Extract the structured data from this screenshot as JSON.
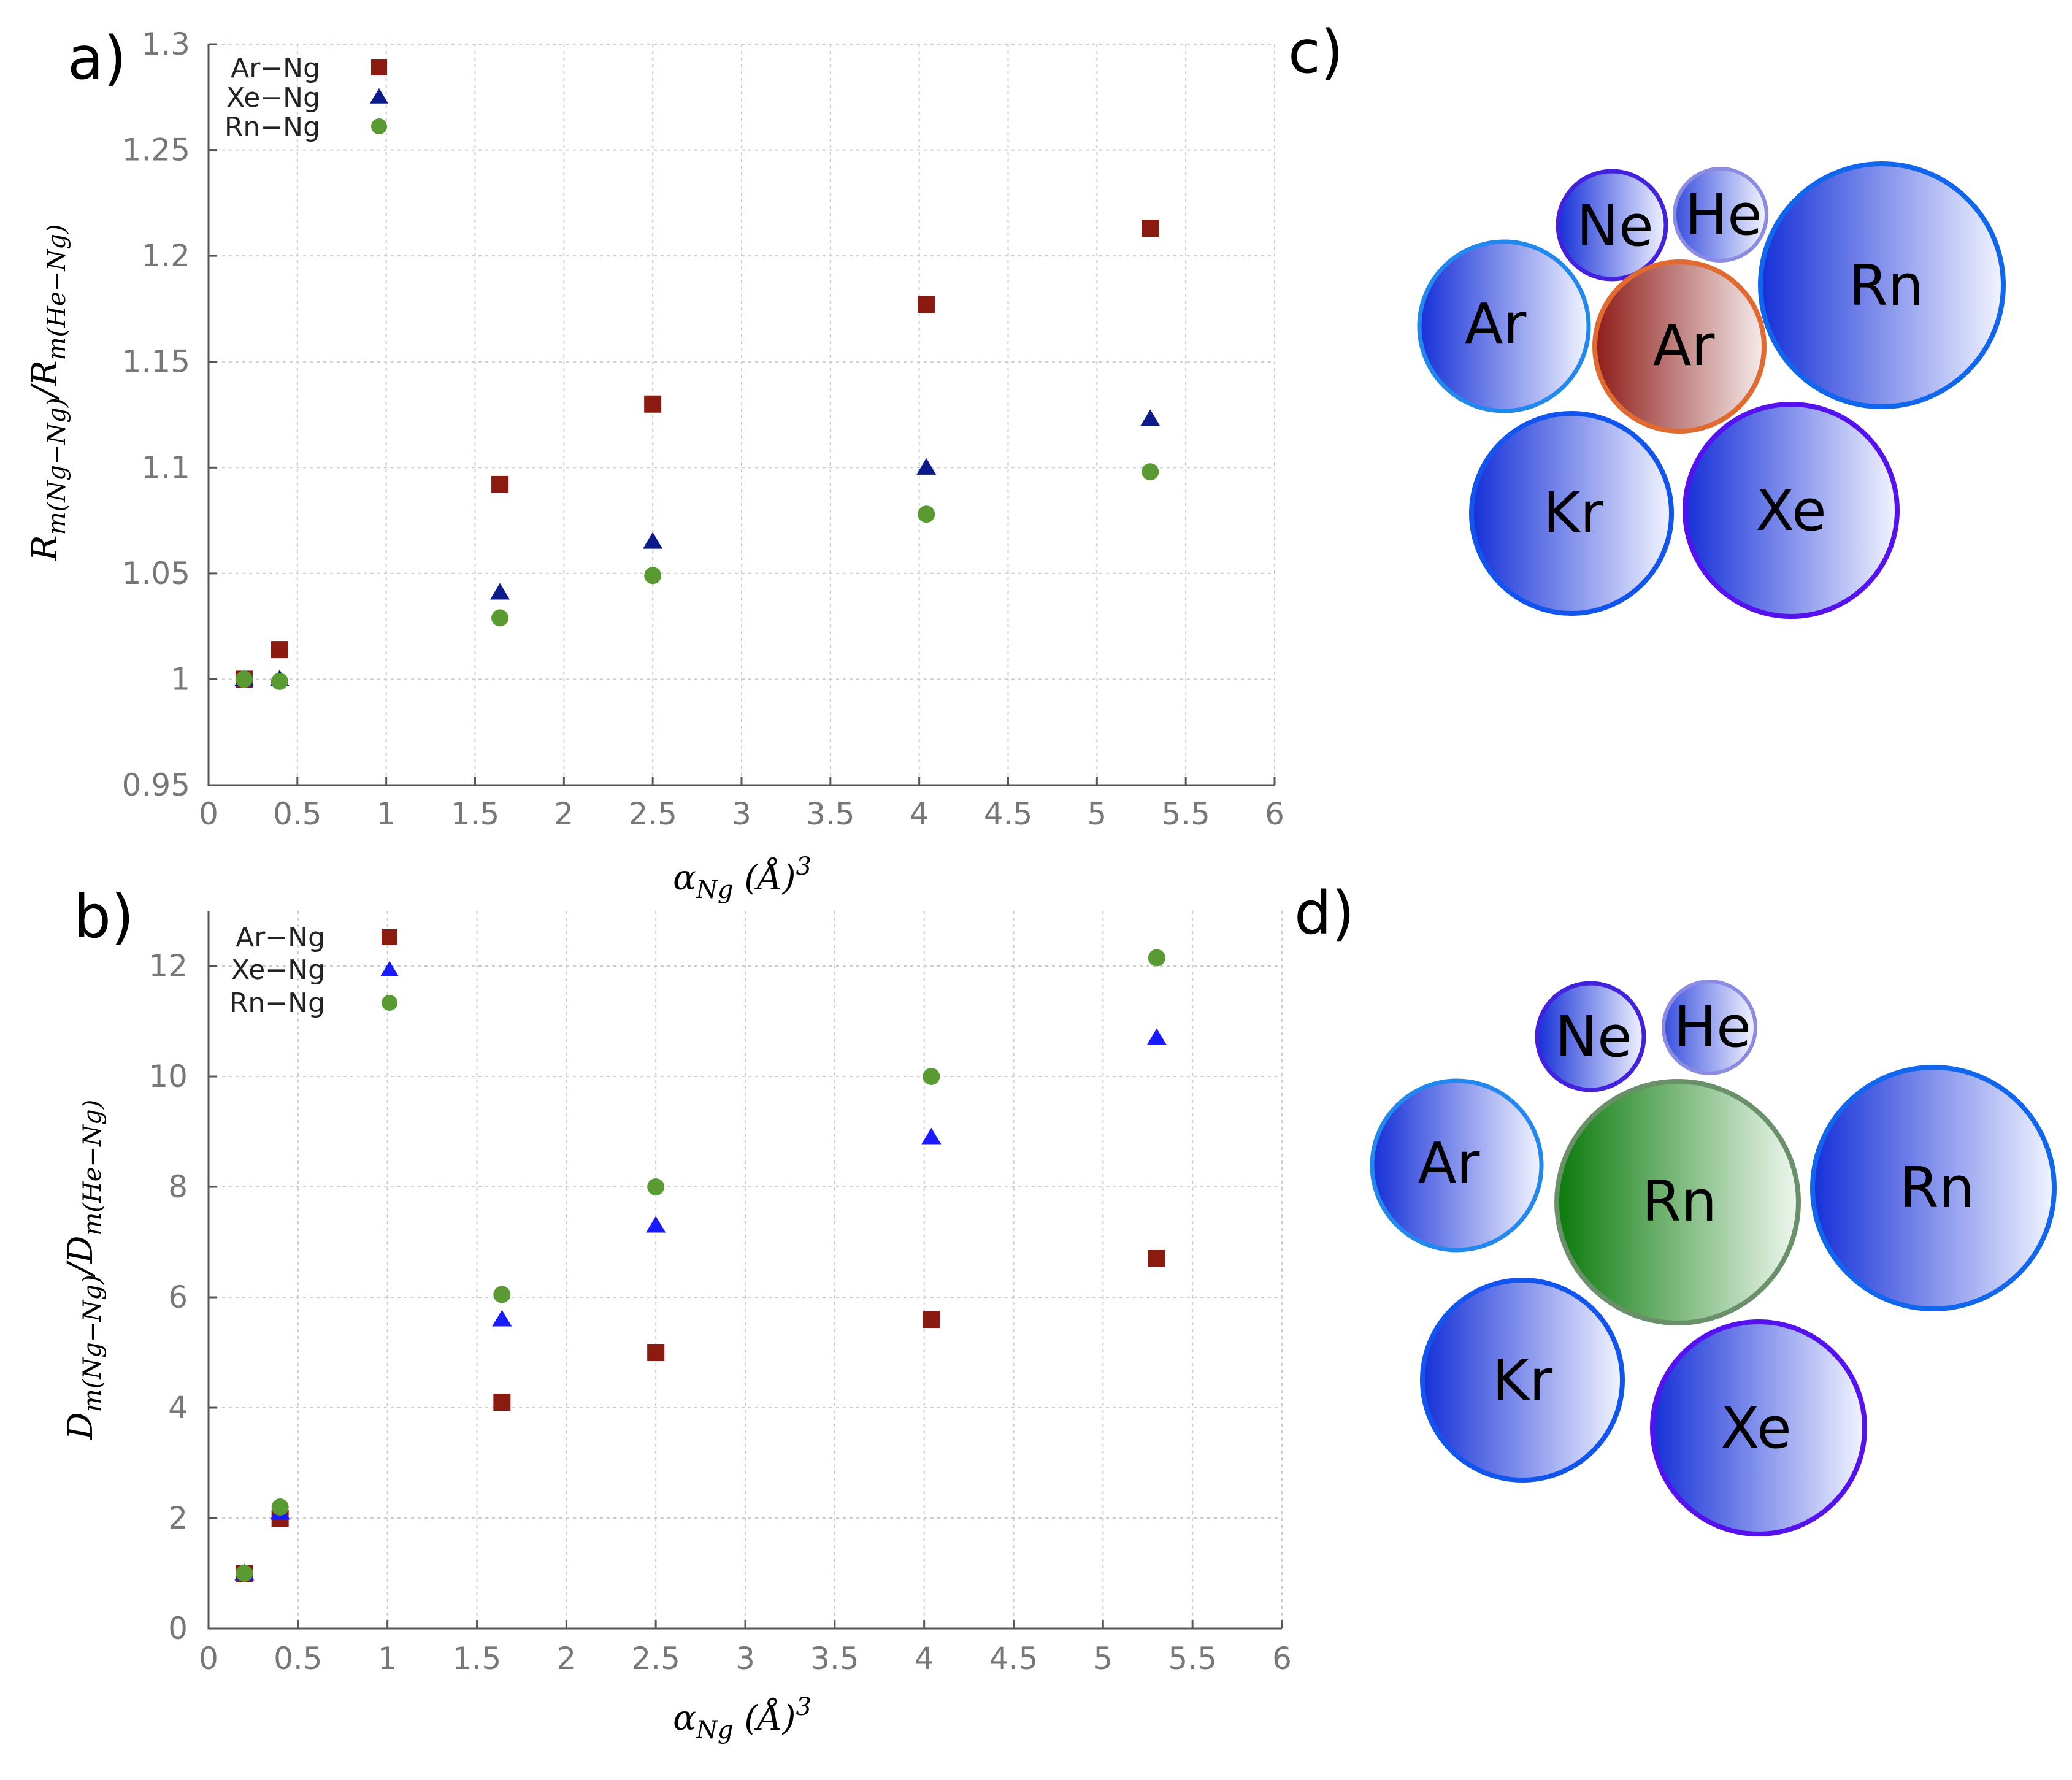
{
  "colors": {
    "ar": "#8b1a10",
    "xe_a": "#0d1a8a",
    "xe_b": "#1a1aff",
    "rn": "#5a9a32",
    "atom_blue": "#2233dd",
    "center_ar": "#a03028",
    "center_rn": "#108010"
  },
  "panel_labels": {
    "a": "a)",
    "b": "b)",
    "c": "c)",
    "d": "d)"
  },
  "chart_data": [
    {
      "type": "scatter",
      "panel": "a",
      "ylabel": {
        "main": "R",
        "sub1": "m(Ng−Ng)",
        "sep": "/R",
        "sub2": "m(He−Ng)"
      },
      "xlabel": {
        "main": "α",
        "sub": "Ng",
        "rest": " (Å)",
        "sup": "3"
      },
      "xlim": [
        0,
        6
      ],
      "ylim": [
        0.95,
        1.3
      ],
      "xticks": [
        0,
        0.5,
        1,
        1.5,
        2,
        2.5,
        3,
        3.5,
        4,
        4.5,
        5,
        5.5,
        6
      ],
      "xtick_labels": [
        "0",
        "0.5",
        "1",
        "1.5",
        "2",
        "2.5",
        "3",
        "3.5",
        "4",
        "4.5",
        "5",
        "5.5",
        "6"
      ],
      "yticks": [
        0.95,
        1,
        1.05,
        1.1,
        1.15,
        1.2,
        1.25,
        1.3
      ],
      "ytick_labels": [
        "0.95",
        "1",
        "1.05",
        "1.1",
        "1.15",
        "1.2",
        "1.25",
        "1.3"
      ],
      "x": [
        0.2,
        0.4,
        1.64,
        2.5,
        4.04,
        5.3
      ],
      "series": [
        {
          "name": "Ar−Ng",
          "marker": "square",
          "color": "#8b1a10",
          "values": [
            1.0,
            1.014,
            1.092,
            1.13,
            1.177,
            1.213
          ]
        },
        {
          "name": "Xe−Ng",
          "marker": "triangle",
          "color": "#0d1a8a",
          "values": [
            1.0,
            1.0,
            1.041,
            1.065,
            1.1,
            1.123
          ]
        },
        {
          "name": "Rn−Ng",
          "marker": "circle",
          "color": "#5a9a32",
          "values": [
            1.0,
            0.999,
            1.029,
            1.049,
            1.078,
            1.098
          ]
        }
      ]
    },
    {
      "type": "scatter",
      "panel": "b",
      "ylabel": {
        "main": "D",
        "sub1": "m(Ng−Ng)",
        "sep": "/D",
        "sub2": "m(He−Ng)"
      },
      "xlabel": {
        "main": "α",
        "sub": "Ng",
        "rest": " (Å)",
        "sup": "3"
      },
      "xlim": [
        0,
        6
      ],
      "ylim": [
        0,
        13
      ],
      "xticks": [
        0,
        0.5,
        1,
        1.5,
        2,
        2.5,
        3,
        3.5,
        4,
        4.5,
        5,
        5.5,
        6
      ],
      "xtick_labels": [
        "0",
        "0.5",
        "1",
        "1.5",
        "2",
        "2.5",
        "3",
        "3.5",
        "4",
        "4.5",
        "5",
        "5.5",
        "6"
      ],
      "yticks": [
        0,
        2,
        4,
        6,
        8,
        10,
        12
      ],
      "ytick_labels": [
        "0",
        "2",
        "4",
        "6",
        "8",
        "10",
        "12"
      ],
      "x": [
        0.2,
        0.4,
        1.64,
        2.5,
        4.04,
        5.3
      ],
      "series": [
        {
          "name": "Ar−Ng",
          "marker": "square",
          "color": "#8b1a10",
          "values": [
            1.0,
            2.0,
            4.1,
            5.0,
            5.6,
            6.7
          ]
        },
        {
          "name": "Xe−Ng",
          "marker": "triangle",
          "color": "#1a1aff",
          "values": [
            1.0,
            2.1,
            5.6,
            7.3,
            8.9,
            10.7
          ]
        },
        {
          "name": "Rn−Ng",
          "marker": "circle",
          "color": "#5a9a32",
          "values": [
            1.0,
            2.2,
            6.05,
            8.0,
            10.0,
            12.15
          ]
        }
      ]
    }
  ],
  "diagrams": {
    "c": {
      "center": {
        "label": "Ar",
        "fill": "#a03028",
        "stroke": "#e06a30"
      },
      "atoms": [
        {
          "label": "Ne",
          "stroke": "#4422dd"
        },
        {
          "label": "He",
          "stroke": "#7777dd"
        },
        {
          "label": "Ar",
          "stroke": "#2288ee"
        },
        {
          "label": "Rn",
          "stroke": "#1166ee"
        },
        {
          "label": "Kr",
          "stroke": "#1155ee"
        },
        {
          "label": "Xe",
          "stroke": "#5511ee"
        }
      ]
    },
    "d": {
      "center": {
        "label": "Rn",
        "fill": "#108010",
        "stroke": "#6a906a"
      },
      "atoms": [
        {
          "label": "Ne",
          "stroke": "#4422dd"
        },
        {
          "label": "He",
          "stroke": "#7777dd"
        },
        {
          "label": "Ar",
          "stroke": "#2288ee"
        },
        {
          "label": "Rn",
          "stroke": "#1166ee"
        },
        {
          "label": "Kr",
          "stroke": "#1155ee"
        },
        {
          "label": "Xe",
          "stroke": "#5511ee"
        }
      ]
    }
  }
}
